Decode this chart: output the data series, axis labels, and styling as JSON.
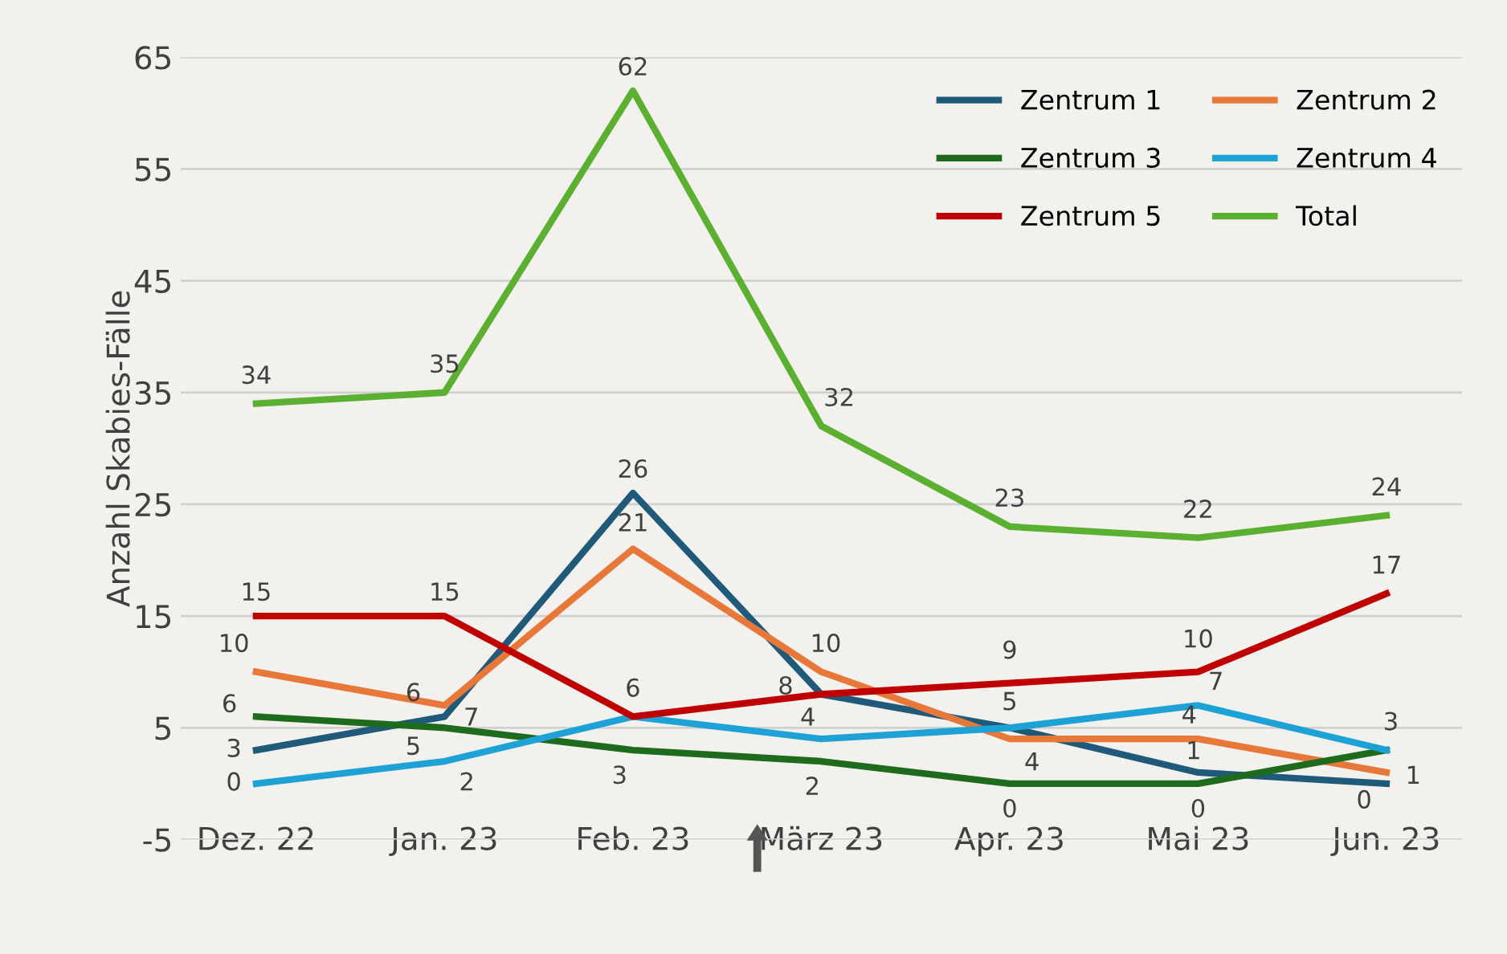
{
  "chart_data": {
    "type": "line",
    "ylabel": "Anzahl Skabies-Fälle",
    "categories": [
      "Dez. 22",
      "Jan. 23",
      "Feb. 23",
      "März 23",
      "Apr. 23",
      "Mai 23",
      "Jun. 23"
    ],
    "series": [
      {
        "name": "Zentrum 1",
        "color": "#1f5a7a",
        "values": [
          3,
          6,
          26,
          8,
          5,
          1,
          0
        ],
        "value_labels": [
          "3",
          "6",
          "26",
          "8",
          null,
          "1",
          "0"
        ]
      },
      {
        "name": "Zentrum 2",
        "color": "#e8773a",
        "values": [
          10,
          7,
          21,
          10,
          4,
          4,
          1
        ],
        "value_labels": [
          "10",
          "7",
          "21",
          "10",
          "4",
          "4",
          "1"
        ]
      },
      {
        "name": "Zentrum 3",
        "color": "#1e6b1e",
        "values": [
          6,
          5,
          3,
          2,
          0,
          0,
          3
        ],
        "value_labels": [
          "6",
          "5",
          "3",
          "2",
          "0",
          "0",
          null
        ]
      },
      {
        "name": "Zentrum 4",
        "color": "#1ea2d6",
        "values": [
          0,
          2,
          6,
          4,
          5,
          7,
          3
        ],
        "value_labels": [
          "0",
          "2",
          null,
          "4",
          "5",
          "7",
          "3"
        ]
      },
      {
        "name": "Zentrum 5",
        "color": "#c00000",
        "values": [
          15,
          15,
          6,
          8,
          9,
          10,
          17
        ],
        "value_labels": [
          "15",
          "15",
          "6",
          null,
          "9",
          "10",
          "17"
        ]
      },
      {
        "name": "Total",
        "color": "#5cb031",
        "values": [
          34,
          35,
          62,
          32,
          23,
          22,
          24
        ],
        "value_labels": [
          "34",
          "35",
          "62",
          "32",
          "23",
          "22",
          "24"
        ]
      }
    ],
    "ylim": [
      -5,
      65
    ],
    "yticks": [
      -5,
      5,
      15,
      25,
      35,
      45,
      55,
      65
    ],
    "grid": "y",
    "legend": "top right",
    "marker": "none",
    "line_style": "solid"
  }
}
